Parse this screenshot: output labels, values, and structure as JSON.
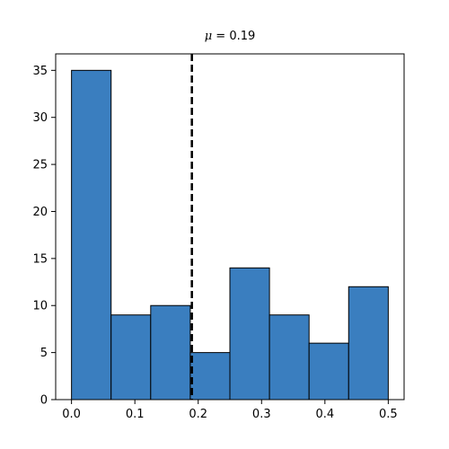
{
  "chart_data": {
    "type": "bar",
    "subtype": "histogram",
    "bin_edges": [
      0.0,
      0.0625,
      0.125,
      0.1875,
      0.25,
      0.3125,
      0.375,
      0.4375,
      0.5
    ],
    "values": [
      35,
      9,
      10,
      5,
      14,
      9,
      6,
      12
    ],
    "bar_color": "#3a7ebf",
    "edge_color": "#000000",
    "mean": 0.19,
    "mean_line_color": "#000000",
    "mean_line_style": "dashed",
    "title_symbol": "μ",
    "title_value": " = 0.19",
    "xlabel": "",
    "ylabel": "",
    "xlim": [
      -0.025,
      0.525
    ],
    "ylim": [
      0,
      36.75
    ],
    "xticks": [
      0.0,
      0.1,
      0.2,
      0.3,
      0.4,
      0.5
    ],
    "xtick_labels": [
      "0.0",
      "0.1",
      "0.2",
      "0.3",
      "0.4",
      "0.5"
    ],
    "yticks": [
      0,
      5,
      10,
      15,
      20,
      25,
      30,
      35
    ],
    "ytick_labels": [
      "0",
      "5",
      "10",
      "15",
      "20",
      "25",
      "30",
      "35"
    ],
    "grid": false,
    "legend": "none"
  }
}
